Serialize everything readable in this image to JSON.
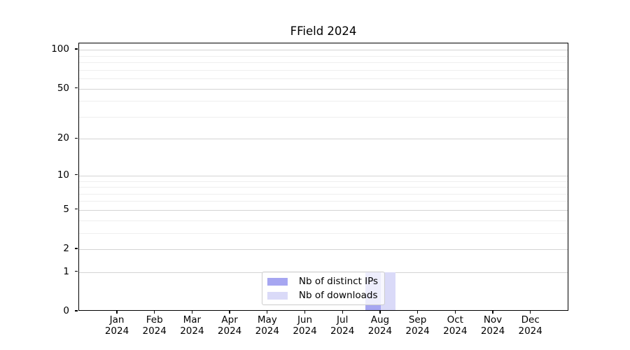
{
  "chart_data": {
    "type": "bar",
    "title": "FField 2024",
    "months": [
      "Jan",
      "Feb",
      "Mar",
      "Apr",
      "May",
      "Jun",
      "Jul",
      "Aug",
      "Sep",
      "Oct",
      "Nov",
      "Dec"
    ],
    "year": "2024",
    "categories": [
      "Jan 2024",
      "Feb 2024",
      "Mar 2024",
      "Apr 2024",
      "May 2024",
      "Jun 2024",
      "Jul 2024",
      "Aug 2024",
      "Sep 2024",
      "Oct 2024",
      "Nov 2024",
      "Dec 2024"
    ],
    "series": [
      {
        "name": "Nb of distinct IPs",
        "color": "#A6A6F1",
        "values": [
          0,
          0,
          0,
          0,
          0,
          0,
          0,
          1,
          0,
          0,
          0,
          0
        ]
      },
      {
        "name": "Nb of downloads",
        "color": "#DADAF8",
        "values": [
          0,
          0,
          0,
          0,
          0,
          0,
          0,
          1,
          0,
          0,
          0,
          0
        ]
      }
    ],
    "y_scale": "log1p",
    "ylim": [
      0,
      100
    ],
    "y_major_ticks": [
      0,
      1,
      2,
      5,
      10,
      20,
      50,
      100
    ],
    "y_minor_gridlines": [
      3,
      4,
      6,
      7,
      8,
      9,
      30,
      40,
      60,
      70,
      80,
      90
    ],
    "grid": true,
    "legend_position": "lower center",
    "colors": {
      "spine": "#000000",
      "grid_major": "#d4d4d4",
      "grid_minor": "#efefef",
      "legend_border": "#cccccc"
    }
  }
}
